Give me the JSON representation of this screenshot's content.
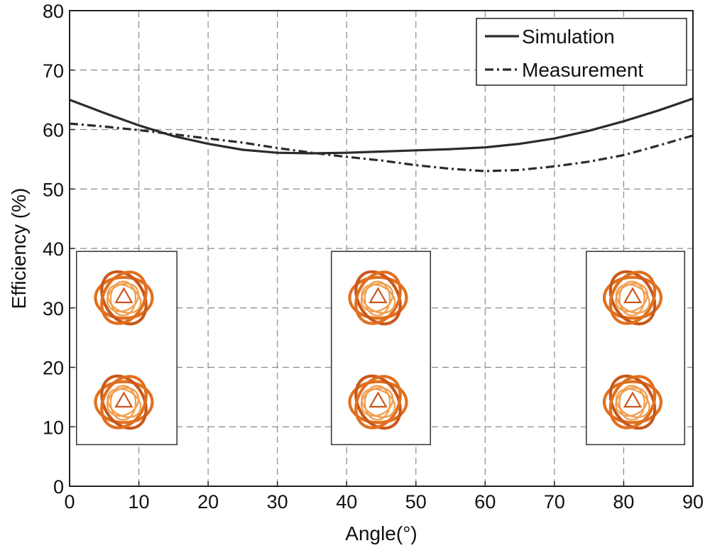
{
  "chart_data": {
    "type": "line",
    "title": "",
    "xlabel": "Angle(°)",
    "ylabel": "Efficiency (%)",
    "xlim": [
      0,
      90
    ],
    "ylim": [
      0,
      80
    ],
    "xticks": [
      0,
      10,
      20,
      30,
      40,
      50,
      60,
      70,
      80,
      90
    ],
    "yticks": [
      0,
      10,
      20,
      30,
      40,
      50,
      60,
      70,
      80
    ],
    "grid": true,
    "legend_position": "top-right",
    "series": [
      {
        "name": "Simulation",
        "style": "solid",
        "color": "#2b2b2b",
        "x": [
          0,
          5,
          10,
          15,
          20,
          25,
          30,
          35,
          40,
          45,
          50,
          55,
          60,
          65,
          70,
          75,
          80,
          85,
          90
        ],
        "y": [
          65,
          62.8,
          60.7,
          58.9,
          57.6,
          56.6,
          56.1,
          56.0,
          56.1,
          56.3,
          56.5,
          56.7,
          57.0,
          57.6,
          58.5,
          59.8,
          61.4,
          63.2,
          65.2
        ]
      },
      {
        "name": "Measurement",
        "style": "dashdot",
        "color": "#2b2b2b",
        "x": [
          0,
          5,
          10,
          15,
          20,
          25,
          30,
          35,
          40,
          45,
          50,
          55,
          60,
          65,
          70,
          75,
          80,
          85,
          90
        ],
        "y": [
          61,
          60.5,
          59.9,
          59.2,
          58.5,
          57.8,
          56.9,
          56.1,
          55.4,
          54.8,
          54.0,
          53.4,
          53.0,
          53.2,
          53.8,
          54.6,
          55.7,
          57.3,
          59.0
        ]
      }
    ],
    "insets": [
      {
        "name": "antenna-pair-at-0deg",
        "x_range": [
          1,
          15.5
        ],
        "y_range": [
          7,
          39.5
        ]
      },
      {
        "name": "antenna-pair-at-45deg",
        "x_range": [
          37.8,
          52.1
        ],
        "y_range": [
          7,
          39.5
        ]
      },
      {
        "name": "antenna-pair-at-90deg",
        "x_range": [
          74.6,
          88.8
        ],
        "y_range": [
          7,
          39.5
        ]
      }
    ],
    "inset_colors": {
      "outer": "#e0701f",
      "mid": "#c9581a",
      "inner": "#f0a050"
    }
  }
}
